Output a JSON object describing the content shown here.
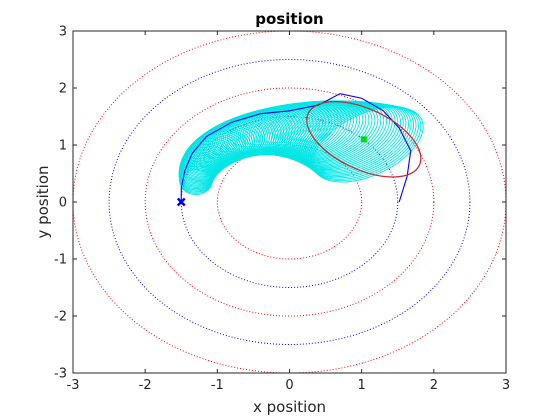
{
  "chart_data": {
    "type": "scatter",
    "title": "position",
    "xlabel": "x position",
    "ylabel": "y position",
    "xlim": [
      -3,
      3
    ],
    "ylim": [
      -3,
      3
    ],
    "xticks": [
      "-3",
      "-2",
      "-1",
      "0",
      "1",
      "2",
      "3"
    ],
    "yticks": [
      "-3",
      "-2",
      "-1",
      "0",
      "1",
      "2",
      "3"
    ],
    "grid": false,
    "legend": "none",
    "colors": {
      "red": "#ff0000",
      "blue": "#0000ff",
      "cyan": "#00e6e6",
      "brown_ellipse": "#c03030",
      "green_marker": "#00dd00"
    },
    "reference_circles": [
      {
        "radius": 1.0,
        "color": "red",
        "style": "dotted"
      },
      {
        "radius": 1.5,
        "color": "blue",
        "style": "dotted"
      },
      {
        "radius": 2.0,
        "color": "red",
        "style": "dotted"
      },
      {
        "radius": 2.5,
        "color": "blue",
        "style": "dotted"
      },
      {
        "radius": 3.0,
        "color": "red",
        "style": "dotted"
      }
    ],
    "inner_red_circle": {
      "cx": 0.0,
      "cy": 0.0,
      "r": 1.0
    },
    "trajectory": {
      "color": "blue",
      "points": [
        [
          -1.5,
          0.0
        ],
        [
          -1.5,
          0.25
        ],
        [
          -1.45,
          0.55
        ],
        [
          -1.35,
          0.85
        ],
        [
          -1.15,
          1.15
        ],
        [
          -0.8,
          1.4
        ],
        [
          -0.4,
          1.55
        ],
        [
          0.0,
          1.6
        ],
        [
          0.4,
          1.7
        ],
        [
          0.7,
          1.9
        ],
        [
          1.0,
          1.82
        ],
        [
          1.3,
          1.6
        ],
        [
          1.52,
          1.3
        ],
        [
          1.68,
          0.9
        ],
        [
          1.63,
          0.45
        ],
        [
          1.52,
          0.0
        ]
      ]
    },
    "covariance_ellipses": {
      "color": "cyan",
      "center_angle_start_deg": 180,
      "center_angle_end_deg": 45,
      "center_radius": 1.5,
      "count": 90
    },
    "current_ellipse": {
      "cx": 1.03,
      "cy": 1.1,
      "rx": 0.85,
      "ry": 0.53,
      "angle_deg": -25,
      "color": "brown_ellipse"
    },
    "markers": [
      {
        "x": -1.5,
        "y": 0.0,
        "symbol": "x",
        "color": "blue"
      },
      {
        "x": 1.03,
        "y": 1.1,
        "symbol": "square",
        "color": "green_marker"
      }
    ]
  }
}
